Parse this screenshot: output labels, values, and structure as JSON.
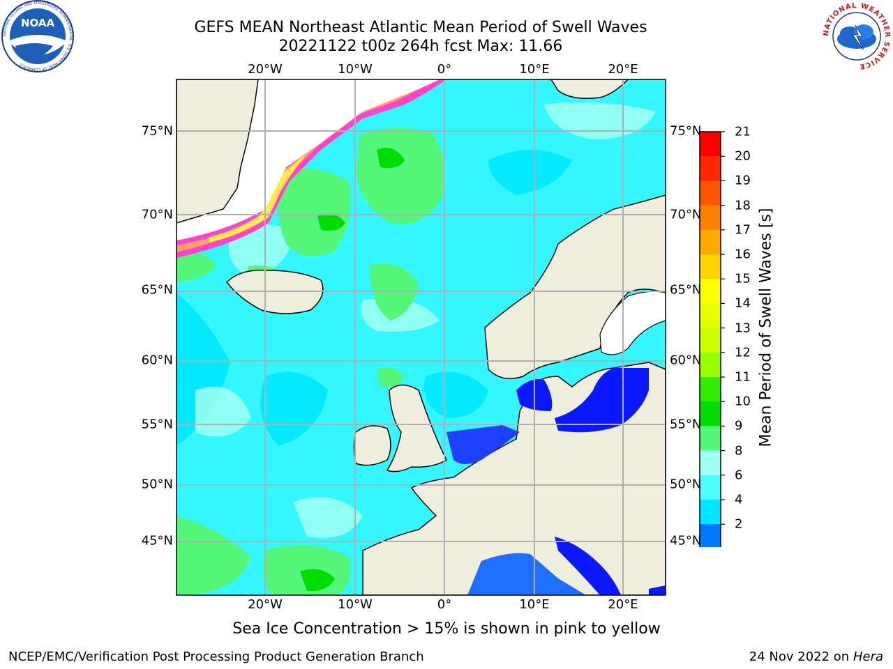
{
  "header": {
    "title_line1": "GEFS MEAN Northeast Atlantic Mean Period of Swell Waves",
    "title_line2": "20221122 t00z 264h fcst   Max: 11.66"
  },
  "logos": {
    "left": "NOAA",
    "left_ring": "NATIONAL OCEANIC AND ATMOSPHERIC ADMINISTRATION · U.S. DEPARTMENT OF COMMERCE",
    "right_ring": "NATIONAL WEATHER SERVICE"
  },
  "map": {
    "lon_labels": [
      "20°W",
      "10°W",
      "0°",
      "10°E",
      "20°E"
    ],
    "lat_labels": [
      "75°N",
      "70°N",
      "65°N",
      "60°N",
      "55°N",
      "50°N",
      "45°N"
    ],
    "colors": {
      "ocean": "#35f7ff",
      "land": "#efeedd",
      "grid": "#b0b0b0"
    }
  },
  "colorbar": {
    "label": "Mean Period of Swell Waves [s]",
    "ticks": [
      "21",
      "20",
      "19",
      "18",
      "17",
      "16",
      "15",
      "14",
      "13",
      "12",
      "11",
      "10",
      "9",
      "8",
      "6",
      "4",
      "2"
    ],
    "colors": [
      "#ff0000",
      "#ff2a00",
      "#ff5500",
      "#ff8000",
      "#ffaa00",
      "#ffd400",
      "#ffff00",
      "#e6ff00",
      "#ccff00",
      "#99ff00",
      "#33ee00",
      "#00dd00",
      "#55f77a",
      "#a0fff0",
      "#4dfdff",
      "#00e8ff",
      "#0078ff"
    ]
  },
  "caption": "Sea Ice Concentration > 15% is shown in pink to yellow",
  "footer": {
    "left": "NCEP/EMC/Verification Post Processing Product Generation Branch",
    "right_date": "24 Nov 2022 on",
    "right_host": "Hera"
  }
}
